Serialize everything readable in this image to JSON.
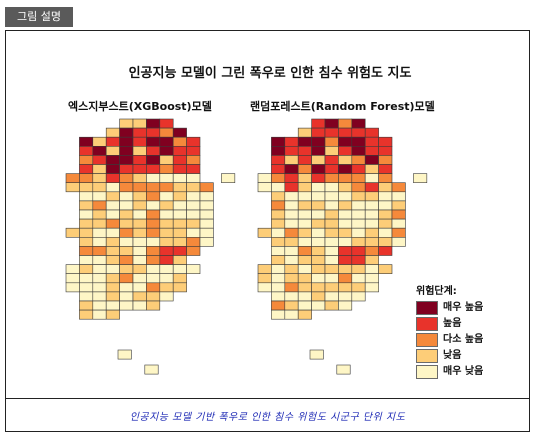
{
  "tab_label": "그림 설명",
  "figure": {
    "title": "인공지능 모델이 그린 폭우로 인한 침수 위험도 지도",
    "left_subtitle": "엑스지부스트(XGBoost)모델",
    "right_subtitle": "랜덤포레스트(Random Forest)모델",
    "legend": {
      "title": "위험단계:",
      "items": [
        {
          "label": "매우 높음",
          "color": "#800020"
        },
        {
          "label": "높음",
          "color": "#e8332b"
        },
        {
          "label": "다소 높음",
          "color": "#f5893b"
        },
        {
          "label": "낮음",
          "color": "#fdcd78"
        },
        {
          "label": "매우 낮음",
          "color": "#fef6c6"
        }
      ]
    }
  },
  "caption": "인공지능 모델 기반 폭우로 인한 침수 위험도 시군구 단위 지도"
}
